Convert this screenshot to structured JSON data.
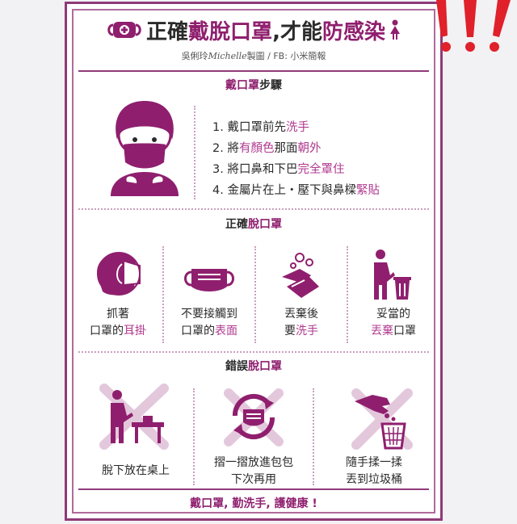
{
  "header": {
    "title_a": "正確",
    "title_b": "戴脫口罩",
    "title_c": ",才能",
    "title_d": "防感染",
    "credit_author": "吳俐玲",
    "credit_brand": "Michelle",
    "credit_rest": "製圖 / FB: 小米簡報"
  },
  "section1": {
    "head_pk": "戴口罩",
    "head_rest": "步驟",
    "steps": [
      {
        "a": "1. 戴口罩前先",
        "b": "洗手",
        "c": ""
      },
      {
        "a": "2. 將",
        "b": "有顏色",
        "c": "那面",
        "d": "朝外"
      },
      {
        "a": "3. 將口鼻和下巴",
        "b": "完全罩住",
        "c": ""
      },
      {
        "a": "4. 金屬片在上・壓下與鼻樑",
        "b": "緊貼",
        "c": ""
      }
    ]
  },
  "section2": {
    "head_a": "正確",
    "head_pk": "脫口罩",
    "items": [
      {
        "l1": "抓著",
        "l2a": "口罩的",
        "l2b": "耳掛"
      },
      {
        "l1": "不要接觸到",
        "l2a": "口罩的",
        "l2b": "表面"
      },
      {
        "l1": "丟棄後",
        "l2a": "要",
        "l2b": "洗手"
      },
      {
        "l1": "妥當的",
        "l2a": "丟棄",
        "l2b": "口罩"
      }
    ]
  },
  "section3": {
    "head_a": "錯誤",
    "head_pk": "脫口罩",
    "items": [
      {
        "l1": "脫下放在桌上",
        "l2": ""
      },
      {
        "l1": "摺一摺放進包包",
        "l2": "下次再用"
      },
      {
        "l1": "隨手揉一揉",
        "l2": "丟到垃圾桶"
      }
    ]
  },
  "footer": {
    "text": "戴口罩, 勤洗手, 護健康 !"
  },
  "colors": {
    "brand": "#8f1f6e",
    "accent": "#b0398f",
    "frame": "#8f3a78",
    "warn": "#e0202a"
  },
  "icons": [
    "mask-logo-icon",
    "woman-icon",
    "person-mask-icon",
    "head-ear-loop-icon",
    "mask-hands-icon",
    "washing-hands-icon",
    "trash-person-icon",
    "table-cross-icon",
    "recycle-mask-cross-icon",
    "crumple-hand-cross-icon",
    "warning-exclamation-icon"
  ]
}
